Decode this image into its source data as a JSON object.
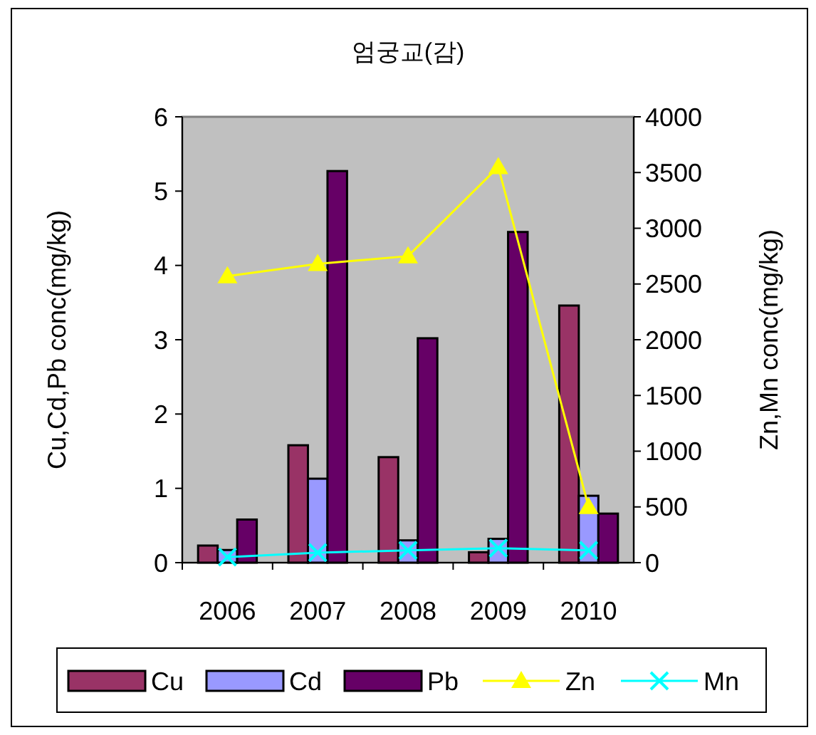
{
  "chart_data": {
    "type": "bar",
    "title": "엄궁교(감)",
    "categories": [
      "2006",
      "2007",
      "2008",
      "2009",
      "2010"
    ],
    "ylabel": "Cu,Cd,Pb conc(mg/kg)",
    "y2label": "Zn,Mn conc(mg/kg)",
    "ylim": [
      0,
      6
    ],
    "yticks": [
      0,
      1,
      2,
      3,
      4,
      5,
      6
    ],
    "y2lim": [
      0,
      4000
    ],
    "y2ticks": [
      0,
      500,
      1000,
      1500,
      2000,
      2500,
      3000,
      3500,
      4000
    ],
    "legend": "bottom",
    "grid": false,
    "series": [
      {
        "name": "Cu",
        "color": "#993366",
        "values": [
          0.23,
          1.58,
          1.42,
          0.14,
          3.46
        ]
      },
      {
        "name": "Cd",
        "color": "#9999ff",
        "values": [
          0.17,
          1.13,
          0.3,
          0.32,
          0.9
        ]
      },
      {
        "name": "Pb",
        "color": "#660066",
        "values": [
          0.58,
          5.27,
          3.02,
          4.45,
          0.66
        ]
      },
      {
        "name": "Zn",
        "type": "line",
        "axis": "y2",
        "marker": "triangle",
        "color": "#ffff00",
        "values": [
          2570,
          2680,
          2750,
          3550,
          500
        ]
      },
      {
        "name": "Mn",
        "type": "line",
        "axis": "y2",
        "marker": "cross",
        "color": "#00ffff",
        "values": [
          50,
          90,
          110,
          130,
          110
        ]
      }
    ]
  }
}
